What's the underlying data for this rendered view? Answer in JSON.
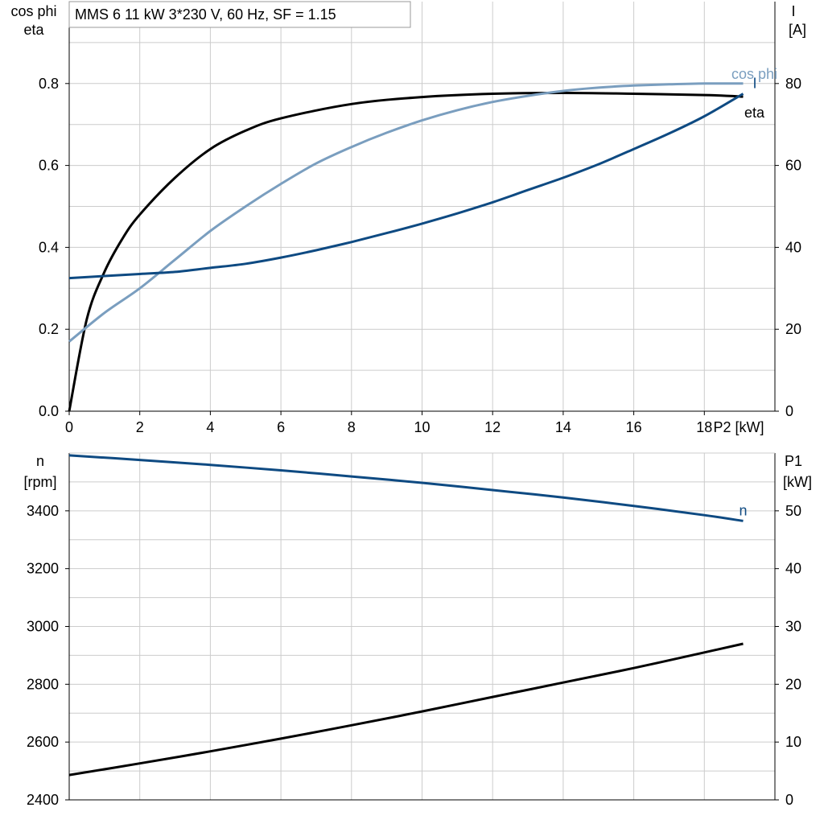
{
  "legend_box": {
    "text": "MMS 6   11 kW   3*230 V, 60 Hz, SF = 1.15"
  },
  "colors": {
    "eta": "#000000",
    "cos_phi": "#7a9ebf",
    "current": "#0e4a82",
    "speed": "#0e4a82",
    "p1": "#000000",
    "grid": "#cccccc"
  },
  "chart_data": [
    {
      "type": "line",
      "panel": "top",
      "x": {
        "label": "P2 [kW]",
        "range": [
          0,
          20
        ],
        "ticks": [
          0,
          2,
          4,
          6,
          8,
          10,
          12,
          14,
          16,
          18
        ]
      },
      "y_left": {
        "label": [
          "cos phi",
          "eta"
        ],
        "range": [
          0,
          1.0
        ],
        "ticks": [
          0.0,
          0.2,
          0.4,
          0.6,
          0.8
        ]
      },
      "y_right": {
        "label": [
          "I",
          "[A]"
        ],
        "range": [
          0,
          100
        ],
        "ticks": [
          0,
          20,
          40,
          60,
          80
        ]
      },
      "grid": true,
      "series": [
        {
          "name": "eta",
          "axis": "left",
          "label_visible": "eta",
          "x": [
            0,
            0.5,
            1,
            1.5,
            2,
            3,
            4,
            5,
            6,
            8,
            10,
            12,
            14,
            16,
            18,
            19.1
          ],
          "y": [
            0.0,
            0.225,
            0.34,
            0.42,
            0.48,
            0.57,
            0.64,
            0.685,
            0.715,
            0.75,
            0.767,
            0.775,
            0.777,
            0.775,
            0.772,
            0.768
          ]
        },
        {
          "name": "cos phi",
          "axis": "left",
          "label_visible": "cos phi",
          "x": [
            0,
            1,
            2,
            3,
            4,
            5,
            6,
            7,
            8,
            9,
            10,
            11,
            12,
            13,
            14,
            15,
            16,
            17,
            18,
            19.1
          ],
          "y": [
            0.17,
            0.24,
            0.3,
            0.37,
            0.44,
            0.5,
            0.555,
            0.605,
            0.645,
            0.68,
            0.71,
            0.735,
            0.755,
            0.77,
            0.782,
            0.79,
            0.795,
            0.798,
            0.8,
            0.8
          ]
        },
        {
          "name": "I",
          "axis": "right",
          "label_visible": "I",
          "x": [
            0,
            1,
            2,
            3,
            4,
            5,
            6,
            7,
            8,
            9,
            10,
            11,
            12,
            13,
            14,
            15,
            16,
            17,
            18,
            19.1
          ],
          "y": [
            32.5,
            33,
            33.5,
            34,
            35,
            36,
            37.5,
            39.3,
            41.3,
            43.5,
            45.8,
            48.3,
            51,
            54,
            57,
            60.3,
            64,
            67.8,
            72,
            77.5
          ]
        }
      ]
    },
    {
      "type": "line",
      "panel": "bottom",
      "x": {
        "range": [
          0,
          20
        ]
      },
      "y_left": {
        "label": [
          "n",
          "[rpm]"
        ],
        "range": [
          2400,
          3600
        ],
        "ticks": [
          2400,
          2600,
          2800,
          3000,
          3200,
          3400
        ]
      },
      "y_right": {
        "label": [
          "P1",
          "[kW]"
        ],
        "range": [
          0,
          60
        ],
        "ticks": [
          0,
          10,
          20,
          30,
          40,
          50
        ]
      },
      "grid": true,
      "series": [
        {
          "name": "n",
          "axis": "left",
          "label_visible": "n",
          "x": [
            0,
            2,
            4,
            6,
            8,
            10,
            12,
            14,
            16,
            18,
            19.1
          ],
          "y": [
            3592,
            3576,
            3559,
            3540,
            3519,
            3497,
            3472,
            3446,
            3417,
            3385,
            3365
          ]
        },
        {
          "name": "P1",
          "axis": "right",
          "x": [
            0,
            2,
            4,
            6,
            8,
            10,
            12,
            14,
            16,
            18,
            19.1
          ],
          "y": [
            4.3,
            6.3,
            8.4,
            10.6,
            12.9,
            15.3,
            17.8,
            20.3,
            22.8,
            25.5,
            27.0
          ]
        }
      ]
    }
  ]
}
